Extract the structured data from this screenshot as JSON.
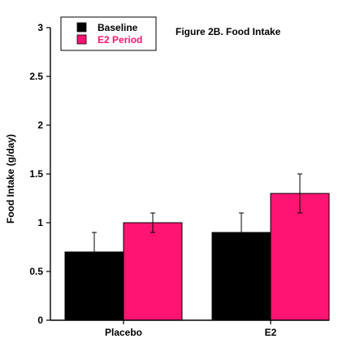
{
  "chart_data": {
    "type": "bar",
    "title": "Figure 2B.  Food Intake",
    "xlabel": "",
    "ylabel": "Food Intake (g/day)",
    "categories": [
      "Placebo",
      "E2"
    ],
    "series": [
      {
        "name": "Baseline",
        "color": "#000000",
        "values": [
          0.7,
          0.9
        ],
        "errors": [
          0.2,
          0.2
        ]
      },
      {
        "name": "E2 Period",
        "color": "#ff1472",
        "values": [
          1.0,
          1.3
        ],
        "errors": [
          0.1,
          0.2
        ]
      }
    ],
    "ylim": [
      0,
      3
    ],
    "yticks": [
      0,
      0.5,
      1,
      1.5,
      2,
      2.5,
      3
    ],
    "ytick_labels": [
      "0",
      "0.5",
      "1",
      "1.5",
      "2",
      "2.5",
      "3"
    ],
    "grid": false,
    "legend_position": "top-left"
  }
}
